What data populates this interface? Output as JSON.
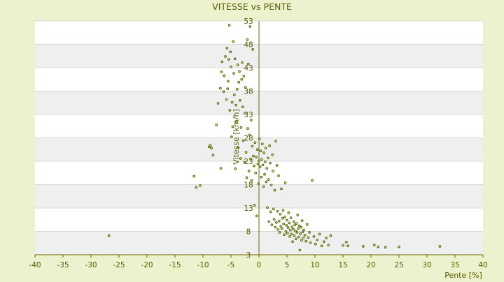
{
  "chart_data": {
    "type": "scatter",
    "title": "VITESSE vs PENTE",
    "xlabel": "Pente [%]",
    "ylabel": "Vitesse [km/h]",
    "xlim": [
      -40,
      40
    ],
    "ylim": [
      3,
      53
    ],
    "x_ticks": [
      -40,
      -35,
      -30,
      -25,
      -20,
      -15,
      -10,
      -5,
      0,
      5,
      10,
      15,
      20,
      25,
      30,
      35,
      40
    ],
    "y_ticks": [
      3,
      8,
      13,
      18,
      23,
      28,
      33,
      38,
      43,
      48,
      53
    ],
    "grid": true,
    "legend": "none",
    "colors": {
      "background": "#ecf2cd",
      "plot_band_light": "#ffffff",
      "plot_band_dark": "#efefef",
      "gridline": "#d8d8d8",
      "axis": "#6b6b00",
      "marker_fill": "#dbe5a0",
      "marker_stroke": "#4f5f00",
      "text": "#5c5c00"
    },
    "points": [
      [
        -26.8,
        7.1
      ],
      [
        -11.6,
        19.8
      ],
      [
        -11.2,
        17.4
      ],
      [
        -10.5,
        17.8
      ],
      [
        -8.9,
        26.1
      ],
      [
        -8.7,
        26.4
      ],
      [
        -8.5,
        25.8
      ],
      [
        -8.2,
        24.3
      ],
      [
        -7.6,
        30.8
      ],
      [
        -7.3,
        35.4
      ],
      [
        -6.9,
        38.6
      ],
      [
        -6.8,
        21.5
      ],
      [
        -6.7,
        42.1
      ],
      [
        -6.6,
        44.3
      ],
      [
        -6.3,
        37.9
      ],
      [
        -6.2,
        41.3
      ],
      [
        -6.0,
        45.4
      ],
      [
        -5.8,
        36.2
      ],
      [
        -5.7,
        47.2
      ],
      [
        -5.6,
        38.5
      ],
      [
        -5.5,
        40.1
      ],
      [
        -5.4,
        44.8
      ],
      [
        -5.3,
        52.1
      ],
      [
        -5.2,
        33.9
      ],
      [
        -5.1,
        46.4
      ],
      [
        -5.0,
        43.2
      ],
      [
        -4.9,
        28.2
      ],
      [
        -4.8,
        35.6
      ],
      [
        -4.7,
        30.4
      ],
      [
        -4.6,
        48.6
      ],
      [
        -4.5,
        41.8
      ],
      [
        -4.4,
        37.2
      ],
      [
        -4.3,
        44.9
      ],
      [
        -4.2,
        21.4
      ],
      [
        -4.1,
        35.0
      ],
      [
        -4.0,
        31.4
      ],
      [
        -3.9,
        38.4
      ],
      [
        -3.8,
        43.6
      ],
      [
        -3.7,
        25.9
      ],
      [
        -3.6,
        39.9
      ],
      [
        -3.5,
        42.2
      ],
      [
        -3.4,
        36.0
      ],
      [
        -3.3,
        23.6
      ],
      [
        -3.2,
        30.2
      ],
      [
        -3.1,
        40.5
      ],
      [
        -3.0,
        44.1
      ],
      [
        -2.9,
        34.6
      ],
      [
        -2.8,
        27.4
      ],
      [
        -2.7,
        41.2
      ],
      [
        -2.6,
        22.8
      ],
      [
        -2.5,
        33.3
      ],
      [
        -2.4,
        38.8
      ],
      [
        -2.3,
        24.9
      ],
      [
        -2.2,
        19.5
      ],
      [
        -2.1,
        49.0
      ],
      [
        -2.0,
        30.0
      ],
      [
        -1.9,
        43.8
      ],
      [
        -1.8,
        20.9
      ],
      [
        -1.7,
        28.6
      ],
      [
        -1.6,
        51.8
      ],
      [
        -1.5,
        23.5
      ],
      [
        -1.4,
        31.8
      ],
      [
        -1.3,
        18.9
      ],
      [
        -1.2,
        26.2
      ],
      [
        -1.1,
        46.9
      ],
      [
        -1.0,
        24.1
      ],
      [
        -0.9,
        22.0
      ],
      [
        -0.8,
        13.6
      ],
      [
        -0.7,
        27.0
      ],
      [
        -0.6,
        20.5
      ],
      [
        -0.5,
        23.9
      ],
      [
        -0.4,
        11.3
      ],
      [
        -0.3,
        25.5
      ],
      [
        -0.2,
        22.4
      ],
      [
        -0.1,
        18.2
      ],
      [
        0.0,
        23.1
      ],
      [
        0.1,
        27.8
      ],
      [
        0.2,
        21.8
      ],
      [
        0.3,
        25.2
      ],
      [
        0.4,
        19.6
      ],
      [
        0.5,
        23.4
      ],
      [
        0.6,
        26.7
      ],
      [
        0.7,
        22.2
      ],
      [
        0.8,
        17.6
      ],
      [
        0.9,
        24.8
      ],
      [
        1.0,
        20.2
      ],
      [
        1.1,
        22.9
      ],
      [
        1.2,
        25.8
      ],
      [
        1.3,
        18.6
      ],
      [
        1.4,
        21.5
      ],
      [
        1.5,
        13.1
      ],
      [
        1.6,
        23.7
      ],
      [
        1.7,
        19.1
      ],
      [
        1.8,
        10.1
      ],
      [
        1.9,
        26.3
      ],
      [
        2.0,
        22.6
      ],
      [
        2.1,
        12.2
      ],
      [
        2.2,
        17.9
      ],
      [
        2.3,
        9.4
      ],
      [
        2.4,
        24.4
      ],
      [
        2.5,
        20.9
      ],
      [
        2.6,
        12.8
      ],
      [
        2.7,
        10.6
      ],
      [
        2.8,
        16.8
      ],
      [
        2.9,
        8.9
      ],
      [
        3.0,
        27.3
      ],
      [
        3.1,
        9.9
      ],
      [
        3.2,
        22.1
      ],
      [
        3.3,
        12.3
      ],
      [
        3.4,
        8.4
      ],
      [
        3.5,
        19.9
      ],
      [
        3.6,
        10.2
      ],
      [
        3.7,
        7.8
      ],
      [
        3.8,
        11.7
      ],
      [
        3.9,
        9.1
      ],
      [
        4.0,
        17.1
      ],
      [
        4.1,
        8.6
      ],
      [
        4.2,
        10.8
      ],
      [
        4.3,
        12.5
      ],
      [
        4.4,
        9.6
      ],
      [
        4.5,
        7.3
      ],
      [
        4.6,
        11.1
      ],
      [
        4.7,
        18.4
      ],
      [
        4.8,
        8.0
      ],
      [
        4.9,
        9.3
      ],
      [
        5.0,
        10.4
      ],
      [
        5.1,
        7.6
      ],
      [
        5.2,
        8.8
      ],
      [
        5.3,
        12.0
      ],
      [
        5.4,
        9.8
      ],
      [
        5.5,
        6.9
      ],
      [
        5.6,
        8.3
      ],
      [
        5.7,
        10.9
      ],
      [
        5.8,
        7.4
      ],
      [
        5.9,
        9.0
      ],
      [
        6.0,
        5.8
      ],
      [
        6.1,
        8.5
      ],
      [
        6.2,
        10.1
      ],
      [
        6.3,
        7.1
      ],
      [
        6.4,
        9.4
      ],
      [
        6.5,
        8.1
      ],
      [
        6.6,
        6.4
      ],
      [
        6.7,
        9.7
      ],
      [
        6.8,
        7.8
      ],
      [
        6.9,
        11.5
      ],
      [
        7.0,
        8.6
      ],
      [
        7.1,
        6.8
      ],
      [
        7.2,
        9.2
      ],
      [
        7.3,
        4.0
      ],
      [
        7.4,
        7.5
      ],
      [
        7.5,
        8.9
      ],
      [
        7.6,
        6.1
      ],
      [
        7.7,
        10.3
      ],
      [
        7.8,
        7.9
      ],
      [
        7.9,
        6.6
      ],
      [
        8.0,
        8.3
      ],
      [
        8.2,
        7.2
      ],
      [
        8.4,
        5.9
      ],
      [
        8.6,
        9.5
      ],
      [
        8.8,
        6.7
      ],
      [
        9.0,
        7.8
      ],
      [
        9.2,
        5.6
      ],
      [
        9.5,
        18.9
      ],
      [
        9.8,
        6.9
      ],
      [
        10.1,
        5.3
      ],
      [
        10.4,
        6.2
      ],
      [
        10.8,
        7.4
      ],
      [
        11.2,
        4.9
      ],
      [
        11.6,
        5.8
      ],
      [
        12.0,
        6.6
      ],
      [
        12.4,
        5.1
      ],
      [
        12.8,
        7.1
      ],
      [
        15.0,
        5.0
      ],
      [
        15.6,
        5.7
      ],
      [
        15.9,
        4.9
      ],
      [
        18.6,
        4.8
      ],
      [
        20.6,
        5.1
      ],
      [
        21.3,
        4.7
      ],
      [
        22.6,
        4.6
      ],
      [
        25.0,
        4.7
      ],
      [
        32.3,
        4.8
      ]
    ]
  }
}
